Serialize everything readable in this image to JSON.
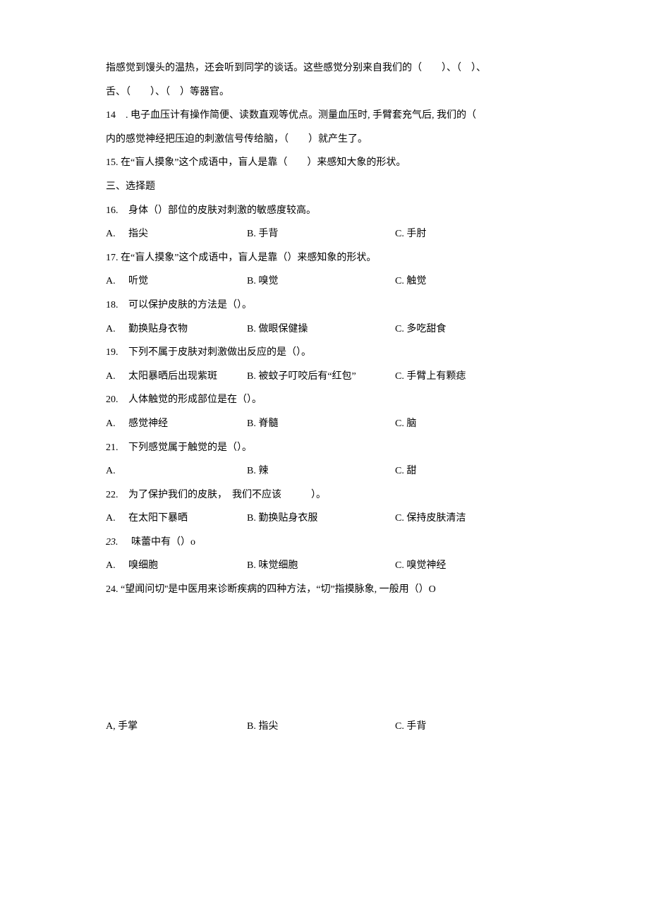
{
  "intro_lines": [
    "指感觉到馒头的温热，还会听到同学的谈话。这些感觉分别来自我们的（　　）、（　）、",
    "舌、（　　）、（　）等器官。"
  ],
  "q14": "14　. 电子血压计有操作简便、读数直观等优点。测量血压时, 手臂套充气后, 我们的（",
  "q14b": "内的感觉神经把压迫的刺激信号传给脑，（　　）就产生了。",
  "q15": "15. 在“盲人摸象”这个成语中，盲人是靠（　　）来感知大象的形状。",
  "section3": "三、选择题",
  "q16": {
    "num": "16.",
    "text": "身体（）部位的皮肤对刺激的敏感度较高。",
    "a": "指尖",
    "b": "B. 手背",
    "c": "C. 手肘"
  },
  "q17": {
    "text": "17. 在“盲人摸象”这个成语中，盲人是靠（）来感知象的形状。",
    "a": "听觉",
    "b": "B. 嗅觉",
    "c": "C. 触觉"
  },
  "q18": {
    "num": "18.",
    "text": "可以保护皮肤的方法是（）。",
    "a": "勤换贴身衣物",
    "b": "B. 做眼保健操",
    "c": "C. 多吃甜食"
  },
  "q19": {
    "num": "19.",
    "text": "下列不属于皮肤对刺激做出反应的是（）。",
    "a": "太阳暴晒后出现紫斑",
    "b": "B. 被蚊子叮咬后有“红包”",
    "c": "C. 手臂上有颗痣"
  },
  "q20": {
    "num": "20.",
    "text": "人体触觉的形成部位是在（）。",
    "a": "感觉神经",
    "b": "B. 脊髓",
    "c": "C. 脑"
  },
  "q21": {
    "num": "21.",
    "text": "下列感觉属于触觉的是（）。",
    "a": "",
    "b": "B. 辣",
    "c": "C. 甜"
  },
  "q22": {
    "num": "22.",
    "text": "为了保护我们的皮肤，　我们不应该　　　）。",
    "a": "在太阳下暴晒",
    "b": "B. 勤换贴身衣服",
    "c": "C. 保持皮肤清洁"
  },
  "q23": {
    "num": "23.",
    "text": "味蕾中有（）o",
    "a": "嗅细胞",
    "b": "B. 味觉细胞",
    "c": "C. 嗅觉神经"
  },
  "q24": "24. “望闻问切''是中医用来诊断疾病的四种方法，“切”指摸脉象, 一般用（）O",
  "q24opts": {
    "a": "A, 手掌",
    "b": "B. 指尖",
    "c": "C. 手背"
  },
  "labels": {
    "A": "A."
  }
}
